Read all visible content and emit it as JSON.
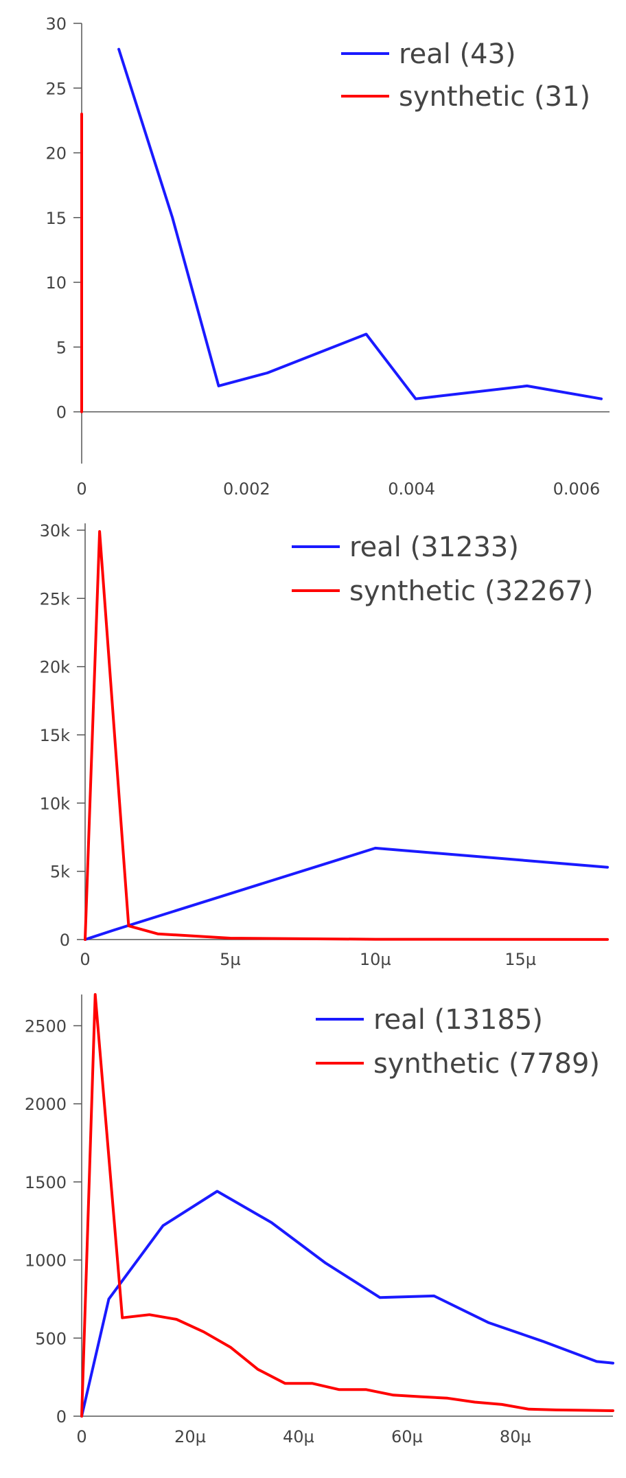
{
  "chart_data": [
    {
      "type": "line",
      "title": "",
      "xlabel": "",
      "ylabel": "",
      "xlim": [
        0,
        0.0064
      ],
      "ylim": [
        -4,
        30
      ],
      "grid": false,
      "legend_position": "top-right",
      "x_ticks": [
        {
          "value": 0,
          "label": "0"
        },
        {
          "value": 0.002,
          "label": "0.002"
        },
        {
          "value": 0.004,
          "label": "0.004"
        },
        {
          "value": 0.006,
          "label": "0.006"
        }
      ],
      "y_ticks": [
        {
          "value": 0,
          "label": "0"
        },
        {
          "value": 5,
          "label": "5"
        },
        {
          "value": 10,
          "label": "10"
        },
        {
          "value": 15,
          "label": "15"
        },
        {
          "value": 20,
          "label": "20"
        },
        {
          "value": 25,
          "label": "25"
        },
        {
          "value": 30,
          "label": "30"
        }
      ],
      "series": [
        {
          "name": "real (43)",
          "color": "#1a1aff",
          "x": [
            0.00045,
            0.0011,
            0.00166,
            0.00225,
            0.00345,
            0.00405,
            0.0054,
            0.0063
          ],
          "y": [
            28,
            15,
            2,
            3,
            6,
            1,
            2,
            1
          ]
        },
        {
          "name": "synthetic (31)",
          "color": "#ff0000",
          "x": [
            0,
            0
          ],
          "y": [
            0,
            23
          ]
        }
      ]
    },
    {
      "type": "line",
      "title": "",
      "xlabel": "",
      "ylabel": "",
      "xlim": [
        0,
        1.8e-05
      ],
      "ylim": [
        0,
        30500
      ],
      "grid": false,
      "legend_position": "top-right",
      "x_ticks": [
        {
          "value": 0,
          "label": "0"
        },
        {
          "value": 5e-06,
          "label": "5µ"
        },
        {
          "value": 1e-05,
          "label": "10µ"
        },
        {
          "value": 1.5e-05,
          "label": "15µ"
        }
      ],
      "y_ticks": [
        {
          "value": 0,
          "label": "0"
        },
        {
          "value": 5000,
          "label": "5k"
        },
        {
          "value": 10000,
          "label": "10k"
        },
        {
          "value": 15000,
          "label": "15k"
        },
        {
          "value": 20000,
          "label": "20k"
        },
        {
          "value": 25000,
          "label": "25k"
        },
        {
          "value": 30000,
          "label": "30k"
        }
      ],
      "series": [
        {
          "name": "real (31233)",
          "color": "#1a1aff",
          "x": [
            0,
            1e-06,
            1e-05,
            1.8e-05
          ],
          "y": [
            0,
            700,
            6700,
            5300
          ]
        },
        {
          "name": "synthetic (32267)",
          "color": "#ff0000",
          "x": [
            0,
            5e-07,
            1.5e-06,
            2.5e-06,
            5e-06,
            1e-05,
            1.5e-05,
            1.8e-05
          ],
          "y": [
            0,
            29900,
            1000,
            420,
            100,
            20,
            10,
            5
          ]
        }
      ]
    },
    {
      "type": "line",
      "title": "",
      "xlabel": "",
      "ylabel": "",
      "xlim": [
        0,
        9.8e-05
      ],
      "ylim": [
        0,
        2700
      ],
      "grid": false,
      "legend_position": "top-right",
      "x_ticks": [
        {
          "value": 0,
          "label": "0"
        },
        {
          "value": 2e-05,
          "label": "20µ"
        },
        {
          "value": 4e-05,
          "label": "40µ"
        },
        {
          "value": 6e-05,
          "label": "60µ"
        },
        {
          "value": 8e-05,
          "label": "80µ"
        }
      ],
      "y_ticks": [
        {
          "value": 0,
          "label": "0"
        },
        {
          "value": 500,
          "label": "500"
        },
        {
          "value": 1000,
          "label": "1000"
        },
        {
          "value": 1500,
          "label": "1500"
        },
        {
          "value": 2000,
          "label": "2000"
        },
        {
          "value": 2500,
          "label": "2500"
        }
      ],
      "series": [
        {
          "name": "real (13185)",
          "color": "#1a1aff",
          "x": [
            0,
            5e-06,
            1.5e-05,
            2.5e-05,
            3.5e-05,
            4.5e-05,
            5.5e-05,
            6.5e-05,
            7.5e-05,
            8.5e-05,
            9.5e-05,
            9.8e-05
          ],
          "y": [
            0,
            750,
            1220,
            1440,
            1240,
            980,
            760,
            770,
            600,
            480,
            350,
            340
          ]
        },
        {
          "name": "synthetic (7789)",
          "color": "#ff0000",
          "x": [
            0,
            2.5e-06,
            7.5e-06,
            1.25e-05,
            1.75e-05,
            2.25e-05,
            2.75e-05,
            3.25e-05,
            3.75e-05,
            4.25e-05,
            4.75e-05,
            5.25e-05,
            5.75e-05,
            6.25e-05,
            6.75e-05,
            7.25e-05,
            7.75e-05,
            8.25e-05,
            8.75e-05,
            9.25e-05,
            9.8e-05
          ],
          "y": [
            0,
            2700,
            630,
            650,
            620,
            540,
            440,
            300,
            210,
            210,
            170,
            170,
            135,
            125,
            115,
            90,
            75,
            45,
            40,
            38,
            35
          ]
        }
      ]
    }
  ]
}
